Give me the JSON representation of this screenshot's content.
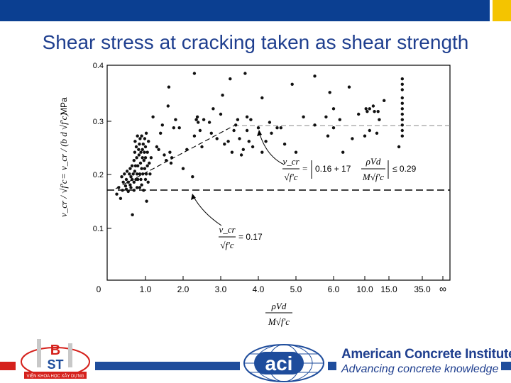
{
  "slide": {
    "title": "Shear stress at cracking taken as shear strength"
  },
  "colors": {
    "header_blue": "#0b3f91",
    "header_accent": "#f4c400",
    "footer_blue": "#1f4d9c",
    "title_blue": "#1f3f8f",
    "footer_red": "#d5211c"
  },
  "chart_data": {
    "type": "scatter",
    "y_ticks": [
      "0.4",
      "0.3",
      "0.2",
      "0.1"
    ],
    "x_ticks": [
      "0",
      "1.0",
      "2.0",
      "3.0",
      "4.0",
      "5.0",
      "6.0",
      "10.0",
      "15.0",
      "35.0",
      "∞"
    ],
    "ylim": [
      0.05,
      0.4
    ],
    "yunit": "MPa",
    "ylabel_lhs": "v_cr / √f'c",
    "ylabel_rhs": "v_cr / (b d √f'c)",
    "xlabel_num": "ρVd",
    "xlabel_den": "M√f'c",
    "eq_upper_lhs_num": "v_cr",
    "eq_upper_lhs_den": "√f'c",
    "eq_upper_rhs_a": "0.16 + 17",
    "eq_upper_frac_num": "ρVd",
    "eq_upper_frac_den": "M√f'c",
    "eq_upper_limit": "≤ 0.29",
    "eq_lower_num": "v_cr",
    "eq_lower_den": "√f'c",
    "eq_lower_rhs": "= 0.17",
    "constant_line": 0.17,
    "cap_line": 0.29,
    "series": [
      {
        "points": [
          [
            0.25,
            0.163
          ],
          [
            0.3,
            0.175
          ],
          [
            0.35,
            0.155
          ],
          [
            0.38,
            0.195
          ],
          [
            0.4,
            0.17
          ],
          [
            0.42,
            0.185
          ],
          [
            0.45,
            0.2
          ],
          [
            0.48,
            0.178
          ],
          [
            0.5,
            0.19
          ],
          [
            0.5,
            0.172
          ],
          [
            0.52,
            0.205
          ],
          [
            0.55,
            0.185
          ],
          [
            0.55,
            0.168
          ],
          [
            0.58,
            0.2
          ],
          [
            0.6,
            0.21
          ],
          [
            0.6,
            0.18
          ],
          [
            0.62,
            0.175
          ],
          [
            0.62,
            0.195
          ],
          [
            0.65,
            0.19
          ],
          [
            0.65,
            0.215
          ],
          [
            0.66,
            0.125
          ],
          [
            0.68,
            0.2
          ],
          [
            0.7,
            0.225
          ],
          [
            0.7,
            0.185
          ],
          [
            0.7,
            0.17
          ],
          [
            0.72,
            0.24
          ],
          [
            0.72,
            0.205
          ],
          [
            0.73,
            0.26
          ],
          [
            0.74,
            0.215
          ],
          [
            0.75,
            0.19
          ],
          [
            0.76,
            0.25
          ],
          [
            0.77,
            0.23
          ],
          [
            0.78,
            0.2
          ],
          [
            0.78,
            0.175
          ],
          [
            0.79,
            0.27
          ],
          [
            0.8,
            0.215
          ],
          [
            0.8,
            0.19
          ],
          [
            0.82,
            0.245
          ],
          [
            0.83,
            0.235
          ],
          [
            0.84,
            0.255
          ],
          [
            0.85,
            0.2
          ],
          [
            0.85,
            0.175
          ],
          [
            0.86,
            0.265
          ],
          [
            0.87,
            0.22
          ],
          [
            0.88,
            0.24
          ],
          [
            0.88,
            0.19
          ],
          [
            0.9,
            0.27
          ],
          [
            0.9,
            0.21
          ],
          [
            0.9,
            0.18
          ],
          [
            0.92,
            0.245
          ],
          [
            0.92,
            0.23
          ],
          [
            0.93,
            0.2
          ],
          [
            0.94,
            0.255
          ],
          [
            0.95,
            0.17
          ],
          [
            0.96,
            0.225
          ],
          [
            0.97,
            0.24
          ],
          [
            0.98,
            0.265
          ],
          [
            0.98,
            0.21
          ],
          [
            1.0,
            0.19
          ],
          [
            1.0,
            0.23
          ],
          [
            1.0,
            0.25
          ],
          [
            1.02,
            0.275
          ],
          [
            1.02,
            0.2
          ],
          [
            1.03,
            0.15
          ],
          [
            1.05,
            0.24
          ],
          [
            1.05,
            0.215
          ],
          [
            1.07,
            0.185
          ],
          [
            1.08,
            0.26
          ],
          [
            1.1,
            0.22
          ],
          [
            1.12,
            0.2
          ],
          [
            1.15,
            0.23
          ],
          [
            1.2,
            0.305
          ],
          [
            1.3,
            0.25
          ],
          [
            1.35,
            0.245
          ],
          [
            1.4,
            0.275
          ],
          [
            1.45,
            0.29
          ],
          [
            1.5,
            0.235
          ],
          [
            1.55,
            0.225
          ],
          [
            1.6,
            0.325
          ],
          [
            1.62,
            0.36
          ],
          [
            1.65,
            0.24
          ],
          [
            1.68,
            0.22
          ],
          [
            1.7,
            0.23
          ],
          [
            1.75,
            0.285
          ],
          [
            1.8,
            0.3
          ],
          [
            1.9,
            0.285
          ],
          [
            2.0,
            0.21
          ],
          [
            2.1,
            0.245
          ],
          [
            2.25,
            0.195
          ],
          [
            2.3,
            0.27
          ],
          [
            2.3,
            0.385
          ],
          [
            2.35,
            0.3
          ],
          [
            2.38,
            0.305
          ],
          [
            2.4,
            0.295
          ],
          [
            2.45,
            0.28
          ],
          [
            2.5,
            0.25
          ],
          [
            2.55,
            0.3
          ],
          [
            2.7,
            0.295
          ],
          [
            2.75,
            0.275
          ],
          [
            2.8,
            0.32
          ],
          [
            2.9,
            0.265
          ],
          [
            3.0,
            0.31
          ],
          [
            3.05,
            0.345
          ],
          [
            3.1,
            0.255
          ],
          [
            3.2,
            0.26
          ],
          [
            3.25,
            0.375
          ],
          [
            3.3,
            0.24
          ],
          [
            3.35,
            0.28
          ],
          [
            3.4,
            0.29
          ],
          [
            3.45,
            0.3
          ],
          [
            3.5,
            0.265
          ],
          [
            3.55,
            0.235
          ],
          [
            3.6,
            0.245
          ],
          [
            3.65,
            0.385
          ],
          [
            3.7,
            0.305
          ],
          [
            3.7,
            0.28
          ],
          [
            3.75,
            0.26
          ],
          [
            3.8,
            0.3
          ],
          [
            3.85,
            0.25
          ],
          [
            4.0,
            0.285
          ],
          [
            4.1,
            0.24
          ],
          [
            4.1,
            0.34
          ],
          [
            4.2,
            0.26
          ],
          [
            4.3,
            0.295
          ],
          [
            4.35,
            0.275
          ],
          [
            4.5,
            0.285
          ],
          [
            4.6,
            0.285
          ],
          [
            4.7,
            0.255
          ],
          [
            4.9,
            0.365
          ],
          [
            5.0,
            0.24
          ],
          [
            5.2,
            0.305
          ],
          [
            5.5,
            0.29
          ],
          [
            5.5,
            0.38
          ],
          [
            5.8,
            0.305
          ],
          [
            5.85,
            0.27
          ],
          [
            5.9,
            0.35
          ],
          [
            6.0,
            0.32
          ],
          [
            6.0,
            0.285
          ],
          [
            6.2,
            0.3
          ],
          [
            6.3,
            0.24
          ],
          [
            6.5,
            0.36
          ],
          [
            6.6,
            0.265
          ],
          [
            6.8,
            0.31
          ],
          [
            7.0,
            0.27
          ],
          [
            7.05,
            0.32
          ],
          [
            7.1,
            0.315
          ],
          [
            7.2,
            0.32
          ],
          [
            7.2,
            0.28
          ],
          [
            7.35,
            0.325
          ],
          [
            7.4,
            0.315
          ],
          [
            7.5,
            0.275
          ],
          [
            7.55,
            0.315
          ],
          [
            7.6,
            0.3
          ],
          [
            7.8,
            0.335
          ],
          [
            8.3,
            0.25
          ],
          [
            8.4,
            0.375
          ],
          [
            8.4,
            0.365
          ],
          [
            8.4,
            0.355
          ],
          [
            8.4,
            0.34
          ],
          [
            8.4,
            0.33
          ],
          [
            8.4,
            0.32
          ],
          [
            8.4,
            0.31
          ],
          [
            8.4,
            0.3
          ],
          [
            8.4,
            0.29
          ],
          [
            8.4,
            0.28
          ],
          [
            8.4,
            0.27
          ]
        ]
      }
    ]
  },
  "footer": {
    "bst_logo_text": "VIỆN KHOA HỌC XÂY DỰNG",
    "aci_logo_text": "aci",
    "org_name": "American Concrete Institute®",
    "tagline": "Advancing concrete knowledge"
  }
}
